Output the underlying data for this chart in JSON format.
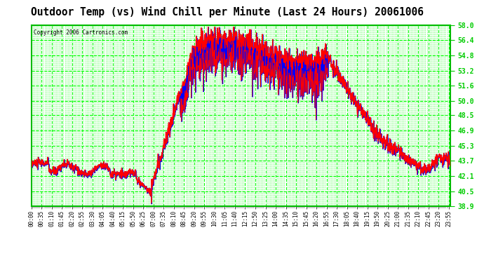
{
  "title": "Outdoor Temp (vs) Wind Chill per Minute (Last 24 Hours) 20061006",
  "copyright": "Copyright 2006 Cartronics.com",
  "bg_color": "#ffffff",
  "fig_bg_color": "#ffffff",
  "grid_color": "#00ff00",
  "temp_color": "#ff0000",
  "windchill_color": "#0000ff",
  "ylim": [
    38.9,
    58.0
  ],
  "yticks": [
    38.9,
    40.5,
    42.1,
    43.7,
    45.3,
    46.9,
    48.5,
    50.0,
    51.6,
    53.2,
    54.8,
    56.4,
    58.0
  ],
  "xlabel_fontsize": 5.5,
  "ylabel_fontsize": 7,
  "title_fontsize": 10.5,
  "total_minutes": 1440
}
